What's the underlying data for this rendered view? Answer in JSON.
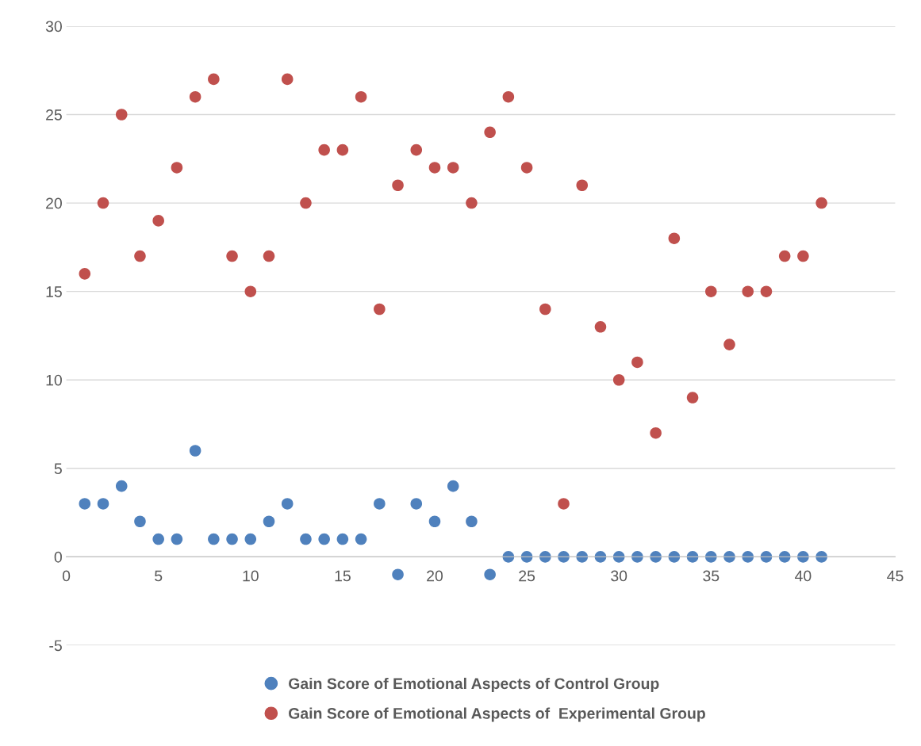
{
  "chart_data": {
    "type": "scatter",
    "x": [
      1,
      2,
      3,
      4,
      5,
      6,
      7,
      8,
      9,
      10,
      11,
      12,
      13,
      14,
      15,
      16,
      17,
      18,
      19,
      20,
      21,
      22,
      23,
      24,
      25,
      26,
      27,
      28,
      29,
      30,
      31,
      32,
      33,
      34,
      35,
      36,
      37,
      38,
      39,
      40,
      41
    ],
    "series": [
      {
        "name": "Gain Score of Emotional Aspects of Control Group",
        "color": "#4f81bd",
        "values": [
          3,
          3,
          4,
          2,
          1,
          1,
          6,
          1,
          1,
          1,
          2,
          3,
          1,
          1,
          1,
          1,
          3,
          -1,
          3,
          2,
          4,
          2,
          -1,
          0,
          0,
          0,
          0,
          0,
          0,
          0,
          0,
          0,
          0,
          0,
          0,
          0,
          0,
          0,
          0,
          0,
          0
        ]
      },
      {
        "name": "Gain Score of Emotional Aspects of  Experimental Group",
        "color": "#c0504d",
        "values": [
          16,
          20,
          25,
          17,
          19,
          22,
          26,
          27,
          17,
          15,
          17,
          27,
          20,
          23,
          23,
          26,
          14,
          21,
          23,
          22,
          22,
          20,
          24,
          26,
          22,
          14,
          3,
          21,
          13,
          10,
          11,
          7,
          18,
          9,
          15,
          12,
          15,
          15,
          17,
          17,
          20
        ]
      }
    ],
    "xlim": [
      0,
      45
    ],
    "xticks": [
      0,
      5,
      10,
      15,
      20,
      25,
      30,
      35,
      40,
      45
    ],
    "ylim": [
      -5,
      30
    ],
    "yticks": [
      -5,
      0,
      5,
      10,
      15,
      20,
      25,
      30
    ],
    "grid": "y",
    "legend": "bottom",
    "marker": "circle"
  }
}
